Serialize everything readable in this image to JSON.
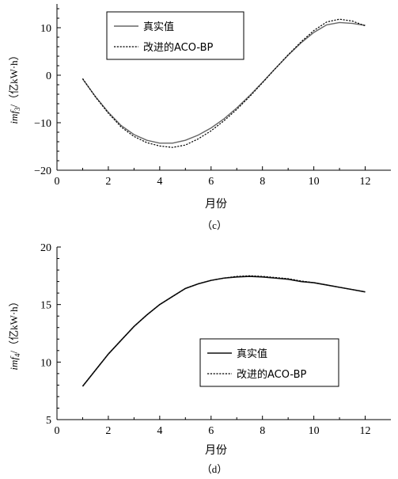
{
  "chart_data": [
    {
      "id": "c",
      "type": "line",
      "caption": "（c）",
      "xlabel": "月份",
      "ylabel_italic": "imf",
      "ylabel_sub": "3",
      "ylabel_unit": "/（亿kW·h）",
      "xlim": [
        0,
        13
      ],
      "ylim": [
        -20,
        15
      ],
      "xticks": [
        0,
        2,
        4,
        6,
        8,
        10,
        12
      ],
      "yticks": [
        -20,
        -10,
        0,
        10
      ],
      "legend": {
        "location": "top-left"
      },
      "x": [
        1,
        1.5,
        2,
        2.5,
        3,
        3.5,
        4,
        4.5,
        5,
        5.5,
        6,
        6.5,
        7,
        7.5,
        8,
        8.5,
        9,
        9.5,
        10,
        10.5,
        11,
        11.5,
        12
      ],
      "series": [
        {
          "name": "真实值",
          "style": "solid-gray",
          "values": [
            -0.8,
            -4.5,
            -7.8,
            -10.6,
            -12.5,
            -13.7,
            -14.3,
            -14.3,
            -13.7,
            -12.6,
            -11.1,
            -9.2,
            -6.9,
            -4.3,
            -1.5,
            1.4,
            4.2,
            6.8,
            9.0,
            10.6,
            11.1,
            10.9,
            10.5
          ]
        },
        {
          "name": "改进的ACO-BP",
          "style": "dotted-black",
          "values": [
            -0.7,
            -4.6,
            -8.0,
            -10.9,
            -12.9,
            -14.2,
            -14.9,
            -15.2,
            -14.7,
            -13.4,
            -11.7,
            -9.6,
            -7.2,
            -4.5,
            -1.6,
            1.4,
            4.3,
            7.0,
            9.4,
            11.2,
            11.8,
            11.4,
            10.4
          ]
        }
      ]
    },
    {
      "id": "d",
      "type": "line",
      "caption": "（d）",
      "xlabel": "月份",
      "ylabel_italic": "imf",
      "ylabel_sub": "4",
      "ylabel_unit": "/（亿kW·h）",
      "xlim": [
        0,
        13
      ],
      "ylim": [
        5,
        20
      ],
      "xticks": [
        0,
        2,
        4,
        6,
        8,
        10,
        12
      ],
      "yticks": [
        5,
        10,
        15,
        20
      ],
      "legend": {
        "location": "center-right"
      },
      "x": [
        1,
        1.5,
        2,
        2.5,
        3,
        3.5,
        4,
        4.5,
        5,
        5.5,
        6,
        6.5,
        7,
        7.5,
        8,
        8.5,
        9,
        9.5,
        10,
        10.5,
        11,
        11.5,
        12
      ],
      "series": [
        {
          "name": "真实值",
          "style": "solid-black",
          "values": [
            7.9,
            9.3,
            10.7,
            11.9,
            13.1,
            14.1,
            15.0,
            15.7,
            16.4,
            16.8,
            17.1,
            17.3,
            17.4,
            17.45,
            17.4,
            17.3,
            17.2,
            17.0,
            16.9,
            16.7,
            16.5,
            16.3,
            16.1
          ]
        },
        {
          "name": "改进的ACO-BP",
          "style": "dotted-black",
          "values": [
            7.9,
            9.3,
            10.7,
            11.9,
            13.1,
            14.1,
            15.0,
            15.7,
            16.4,
            16.8,
            17.1,
            17.3,
            17.45,
            17.5,
            17.45,
            17.35,
            17.25,
            17.05,
            16.9,
            16.7,
            16.5,
            16.3,
            16.1
          ]
        }
      ]
    }
  ]
}
